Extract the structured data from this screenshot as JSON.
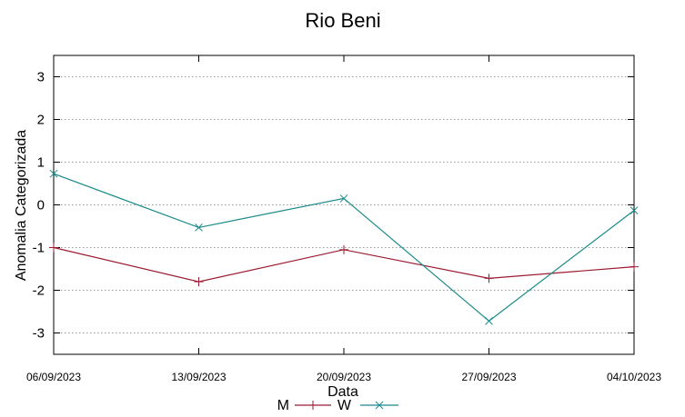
{
  "chart_data": {
    "type": "line",
    "title": "Rio Beni",
    "xlabel": "Data",
    "ylabel": "Anomalia Categorizada",
    "x": [
      "06/09/2023",
      "13/09/2023",
      "20/09/2023",
      "27/09/2023",
      "04/10/2023"
    ],
    "ylim": [
      -3.5,
      3.5
    ],
    "yticks": [
      -3,
      -2,
      -1,
      0,
      1,
      2,
      3
    ],
    "grid": true,
    "legend": "bottom-center",
    "series": [
      {
        "name": "M",
        "color": "#9b1b30",
        "marker": "plus",
        "values": [
          -1.0,
          -1.8,
          -1.05,
          -1.72,
          -1.45
        ]
      },
      {
        "name": "W",
        "color": "#1a8a8a",
        "marker": "cross",
        "values": [
          0.73,
          -0.53,
          0.15,
          -2.72,
          -0.13
        ]
      }
    ]
  }
}
